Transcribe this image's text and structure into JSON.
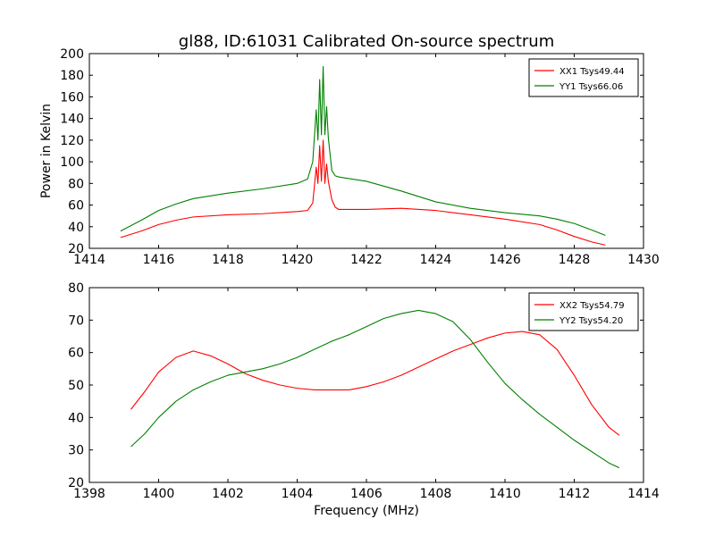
{
  "page": {
    "title": "gl88, ID:61031 Calibrated On-source spectrum"
  },
  "chart_data": [
    {
      "type": "line",
      "title": "gl88, ID:61031 Calibrated On-source spectrum",
      "xlabel": "",
      "ylabel": "Power in Kelvin",
      "xlim": [
        1414,
        1430
      ],
      "ylim": [
        20,
        200
      ],
      "xticks": [
        1414,
        1416,
        1418,
        1420,
        1422,
        1424,
        1426,
        1428,
        1430
      ],
      "yticks": [
        20,
        40,
        60,
        80,
        100,
        120,
        140,
        160,
        180,
        200
      ],
      "grid": false,
      "legend_position": "top-right",
      "series": [
        {
          "name": "XX1 Tsys49.44",
          "color": "#ff0000",
          "x": [
            1414.9,
            1415.5,
            1416.0,
            1416.5,
            1417.0,
            1418.0,
            1419.0,
            1420.0,
            1420.3,
            1420.45,
            1420.55,
            1420.6,
            1420.65,
            1420.7,
            1420.75,
            1420.8,
            1420.85,
            1420.9,
            1421.0,
            1421.1,
            1421.2,
            1422.0,
            1423.0,
            1424.0,
            1425.0,
            1426.0,
            1427.0,
            1427.5,
            1428.0,
            1428.5,
            1428.9
          ],
          "y": [
            30,
            36,
            42,
            46,
            49,
            51,
            52,
            54,
            55,
            62,
            95,
            80,
            115,
            82,
            120,
            80,
            98,
            82,
            65,
            58,
            56,
            56,
            57,
            55,
            51,
            47,
            42,
            37,
            31,
            26,
            23
          ]
        },
        {
          "name": "YY1 Tsys66.06",
          "color": "#008000",
          "x": [
            1414.9,
            1415.5,
            1416.0,
            1416.5,
            1417.0,
            1418.0,
            1419.0,
            1420.0,
            1420.3,
            1420.45,
            1420.55,
            1420.6,
            1420.65,
            1420.7,
            1420.75,
            1420.8,
            1420.85,
            1420.9,
            1421.0,
            1421.1,
            1421.2,
            1422.0,
            1423.0,
            1424.0,
            1425.0,
            1426.0,
            1427.0,
            1427.5,
            1428.0,
            1428.5,
            1428.9
          ],
          "y": [
            36,
            46,
            55,
            61,
            66,
            71,
            75,
            80,
            84,
            100,
            148,
            120,
            176,
            125,
            188,
            125,
            151,
            122,
            92,
            87,
            86,
            82,
            73,
            63,
            57,
            53,
            50,
            47,
            43,
            37,
            32
          ]
        }
      ]
    },
    {
      "type": "line",
      "title": "",
      "xlabel": "Frequency (MHz)",
      "ylabel": "",
      "xlim": [
        1398,
        1414
      ],
      "ylim": [
        20,
        80
      ],
      "xticks": [
        1398,
        1400,
        1402,
        1404,
        1406,
        1408,
        1410,
        1412,
        1414
      ],
      "yticks": [
        20,
        30,
        40,
        50,
        60,
        70,
        80
      ],
      "grid": false,
      "legend_position": "top-right",
      "series": [
        {
          "name": "XX2 Tsys54.79",
          "color": "#ff0000",
          "x": [
            1399.2,
            1399.6,
            1400.0,
            1400.5,
            1401.0,
            1401.5,
            1402.0,
            1402.5,
            1403.0,
            1403.5,
            1404.0,
            1404.5,
            1405.0,
            1405.5,
            1406.0,
            1406.5,
            1407.0,
            1407.5,
            1408.0,
            1408.5,
            1409.0,
            1409.5,
            1410.0,
            1410.5,
            1411.0,
            1411.5,
            1412.0,
            1412.5,
            1413.0,
            1413.3
          ],
          "y": [
            42.5,
            48,
            54,
            58.5,
            60.5,
            59,
            56.5,
            53.5,
            51.5,
            50,
            49,
            48.5,
            48.5,
            48.5,
            49.5,
            51,
            53,
            55.5,
            58,
            60.5,
            62.5,
            64.5,
            66,
            66.5,
            65.5,
            61,
            53,
            44,
            37,
            34.5
          ]
        },
        {
          "name": "YY2 Tsys54.20",
          "color": "#008000",
          "x": [
            1399.2,
            1399.6,
            1400.0,
            1400.5,
            1401.0,
            1401.5,
            1402.0,
            1402.5,
            1403.0,
            1403.5,
            1404.0,
            1404.5,
            1405.0,
            1405.5,
            1406.0,
            1406.5,
            1407.0,
            1407.5,
            1408.0,
            1408.5,
            1409.0,
            1409.5,
            1410.0,
            1410.5,
            1411.0,
            1411.5,
            1412.0,
            1412.5,
            1413.0,
            1413.3
          ],
          "y": [
            31,
            35,
            40,
            45,
            48.5,
            51,
            53,
            54,
            55,
            56.5,
            58.5,
            61,
            63.5,
            65.5,
            68,
            70.5,
            72,
            73,
            72,
            69.5,
            64,
            57,
            50.5,
            45.5,
            41,
            37,
            33,
            29.5,
            26,
            24.5
          ]
        }
      ]
    }
  ]
}
